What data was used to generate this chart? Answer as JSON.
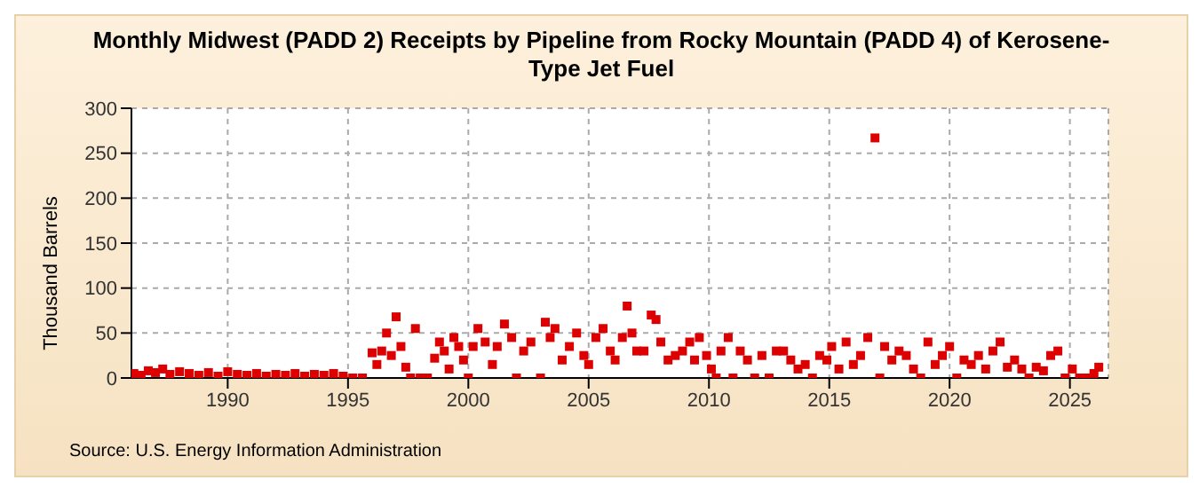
{
  "chart_data": {
    "type": "scatter",
    "title": "Monthly Midwest (PADD 2) Receipts by Pipeline from Rocky Mountain (PADD 4) of Kerosene-Type Jet Fuel",
    "ylabel": "Thousand Barrels",
    "annotations": [
      "Source: U.S. Energy Information Administration"
    ],
    "x": [
      1986.1,
      1986.4,
      1986.7,
      1987.0,
      1987.3,
      1987.6,
      1988.0,
      1988.4,
      1988.8,
      1989.2,
      1989.6,
      1990.0,
      1990.4,
      1990.8,
      1991.2,
      1991.6,
      1992.0,
      1992.4,
      1992.8,
      1993.2,
      1993.6,
      1994.0,
      1994.4,
      1994.8,
      1995.2,
      1995.6,
      1996.0,
      1996.2,
      1996.4,
      1996.6,
      1996.8,
      1997.0,
      1997.2,
      1997.4,
      1997.6,
      1997.8,
      1998.0,
      1998.3,
      1998.6,
      1998.8,
      1999.0,
      1999.2,
      1999.4,
      1999.6,
      1999.8,
      2000.0,
      2000.2,
      2000.4,
      2000.7,
      2001.0,
      2001.2,
      2001.5,
      2001.8,
      2002.0,
      2002.3,
      2002.6,
      2003.0,
      2003.2,
      2003.4,
      2003.6,
      2003.9,
      2004.2,
      2004.5,
      2004.8,
      2005.0,
      2005.3,
      2005.6,
      2005.9,
      2006.1,
      2006.4,
      2006.6,
      2006.8,
      2007.0,
      2007.3,
      2007.6,
      2007.8,
      2008.0,
      2008.3,
      2008.6,
      2008.9,
      2009.2,
      2009.4,
      2009.6,
      2009.9,
      2010.1,
      2010.3,
      2010.5,
      2010.8,
      2011.0,
      2011.3,
      2011.6,
      2011.9,
      2012.2,
      2012.5,
      2012.8,
      2013.1,
      2013.4,
      2013.7,
      2014.0,
      2014.3,
      2014.6,
      2014.9,
      2015.1,
      2015.4,
      2015.7,
      2016.0,
      2016.3,
      2016.6,
      2016.9,
      2017.1,
      2017.3,
      2017.6,
      2017.9,
      2018.2,
      2018.5,
      2018.8,
      2019.1,
      2019.4,
      2019.7,
      2020.0,
      2020.3,
      2020.6,
      2020.9,
      2021.2,
      2021.5,
      2021.8,
      2022.1,
      2022.4,
      2022.7,
      2023.0,
      2023.3,
      2023.6,
      2023.9,
      2024.2,
      2024.5,
      2024.8,
      2025.1,
      2025.4,
      2025.7,
      2026.0,
      2026.2
    ],
    "series": [
      {
        "color": "#dd0000",
        "values": [
          5,
          3,
          8,
          6,
          10,
          4,
          7,
          5,
          3,
          6,
          2,
          7,
          4,
          3,
          5,
          2,
          4,
          3,
          5,
          2,
          4,
          3,
          5,
          2,
          0,
          0,
          28,
          15,
          30,
          50,
          25,
          68,
          35,
          12,
          0,
          55,
          0,
          0,
          22,
          40,
          30,
          10,
          45,
          35,
          20,
          0,
          35,
          55,
          40,
          15,
          35,
          60,
          45,
          0,
          30,
          40,
          0,
          62,
          45,
          55,
          20,
          35,
          50,
          25,
          15,
          45,
          55,
          30,
          20,
          45,
          80,
          50,
          30,
          30,
          70,
          65,
          40,
          20,
          25,
          30,
          40,
          20,
          45,
          25,
          10,
          0,
          30,
          45,
          0,
          30,
          20,
          0,
          25,
          0,
          30,
          30,
          20,
          10,
          15,
          0,
          25,
          20,
          35,
          10,
          40,
          15,
          25,
          45,
          267,
          0,
          35,
          20,
          30,
          25,
          10,
          0,
          40,
          15,
          25,
          35,
          0,
          20,
          15,
          25,
          10,
          30,
          40,
          12,
          20,
          10,
          0,
          12,
          8,
          25,
          30,
          0,
          10,
          0,
          0,
          5,
          12
        ]
      }
    ],
    "xlim": [
      1986,
      2026.6
    ],
    "xticks": [
      1990,
      1995,
      2000,
      2005,
      2010,
      2015,
      2020,
      2025
    ],
    "ylim": [
      0,
      300
    ],
    "yticks": [
      0,
      50,
      100,
      150,
      200,
      250,
      300
    ],
    "grid": true,
    "marker": "square",
    "legend": false
  }
}
